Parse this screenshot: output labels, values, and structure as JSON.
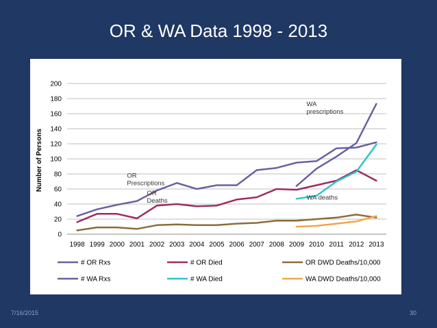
{
  "slide": {
    "title": "OR & WA Data 1998 - 2013",
    "date": "7/16/2015",
    "page": "30"
  },
  "chart_data": {
    "type": "line",
    "title": "OR & WA Data 1998 - 2013",
    "xlabel": "",
    "ylabel": "Number of Persons",
    "ylim": [
      0,
      200
    ],
    "yticks": [
      0,
      20,
      40,
      60,
      80,
      100,
      120,
      140,
      160,
      180,
      200
    ],
    "grid": true,
    "legend_position": "bottom",
    "categories": [
      "1998",
      "1999",
      "2000",
      "2001",
      "2002",
      "2003",
      "2004",
      "2005",
      "2006",
      "2007",
      "2008",
      "2009",
      "2010",
      "2011",
      "2012",
      "2013"
    ],
    "series": [
      {
        "name": "# OR Rxs",
        "color": "#6b5fa0",
        "values": [
          24,
          33,
          39,
          44,
          58,
          68,
          60,
          65,
          65,
          85,
          88,
          95,
          97,
          114,
          115,
          122
        ]
      },
      {
        "name": "# OR Died",
        "color": "#9b2d5e",
        "values": [
          16,
          27,
          27,
          21,
          38,
          40,
          37,
          38,
          46,
          49,
          60,
          59,
          65,
          71,
          85,
          71
        ]
      },
      {
        "name": "OR DWD Deaths/10,000",
        "color": "#8b6b3a",
        "values": [
          5,
          9,
          9,
          7,
          12,
          13,
          12,
          12,
          14,
          15,
          18,
          18,
          20,
          22,
          26,
          22
        ]
      },
      {
        "name": "# WA Rxs",
        "color": "#6b5fa0",
        "values": [
          null,
          null,
          null,
          null,
          null,
          null,
          null,
          null,
          null,
          null,
          null,
          64,
          87,
          103,
          121,
          173
        ]
      },
      {
        "name": "# WA Died",
        "color": "#2ec4c9",
        "values": [
          null,
          null,
          null,
          null,
          null,
          null,
          null,
          null,
          null,
          null,
          null,
          47,
          51,
          70,
          83,
          119
        ]
      },
      {
        "name": "WA DWD Deaths/10,000",
        "color": "#f0a54a",
        "values": [
          null,
          null,
          null,
          null,
          null,
          null,
          null,
          null,
          null,
          null,
          null,
          10,
          11,
          14,
          17,
          24
        ]
      }
    ],
    "annotations": [
      {
        "text": "WA prescriptions",
        "lines": [
          "WA",
          "prescriptions"
        ],
        "x": "2010",
        "y": 170
      },
      {
        "text": "OR Prescriptions",
        "lines": [
          "OR",
          "Prescriptions"
        ],
        "x": "2001",
        "y": 75
      },
      {
        "text": "OR Deaths",
        "lines": [
          "OR",
          "Deaths"
        ],
        "x": "2002",
        "y": 52
      },
      {
        "text": "WA deaths",
        "lines": [
          "WA deaths"
        ],
        "x": "2010",
        "y": 46
      }
    ]
  }
}
